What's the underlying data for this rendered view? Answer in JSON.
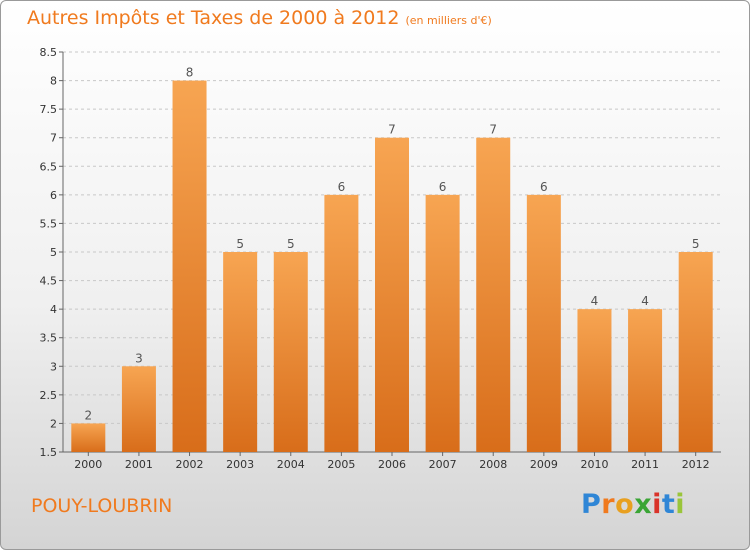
{
  "title": "Autres Impôts et Taxes de 2000 à 2012",
  "subtitle": "(en milliers d'€)",
  "location": "POUY-LOUBRIN",
  "logo": {
    "text": "Proxiti",
    "letter_colors": [
      "#2f86d6",
      "#f07a1e",
      "#e8a020",
      "#3aa535",
      "#d9332a",
      "#2f86d6",
      "#9ac53a"
    ]
  },
  "colors": {
    "bar_top": "#f7a552",
    "bar_bottom": "#d86d1a",
    "accent": "#f07a1e"
  },
  "chart_data": {
    "type": "bar",
    "title": "Autres Impôts et Taxes de 2000 à 2012",
    "subtitle": "(en milliers d'€)",
    "categories": [
      "2000",
      "2001",
      "2002",
      "2003",
      "2004",
      "2005",
      "2006",
      "2007",
      "2008",
      "2009",
      "2010",
      "2011",
      "2012"
    ],
    "values": [
      2,
      3,
      8,
      5,
      5,
      6,
      7,
      6,
      7,
      6,
      4,
      4,
      5
    ],
    "data_labels": [
      "2",
      "3",
      "8",
      "5",
      "5",
      "6",
      "7",
      "6",
      "7",
      "6",
      "4",
      "4",
      "5"
    ],
    "ylim": [
      1.5,
      8.5
    ],
    "yticks": [
      "1.5",
      "2",
      "2.5",
      "3",
      "3.5",
      "4",
      "4.5",
      "5",
      "5.5",
      "6",
      "6.5",
      "7",
      "7.5",
      "8",
      "8.5"
    ],
    "grid": "horizontal-dashed",
    "legend": "none"
  }
}
